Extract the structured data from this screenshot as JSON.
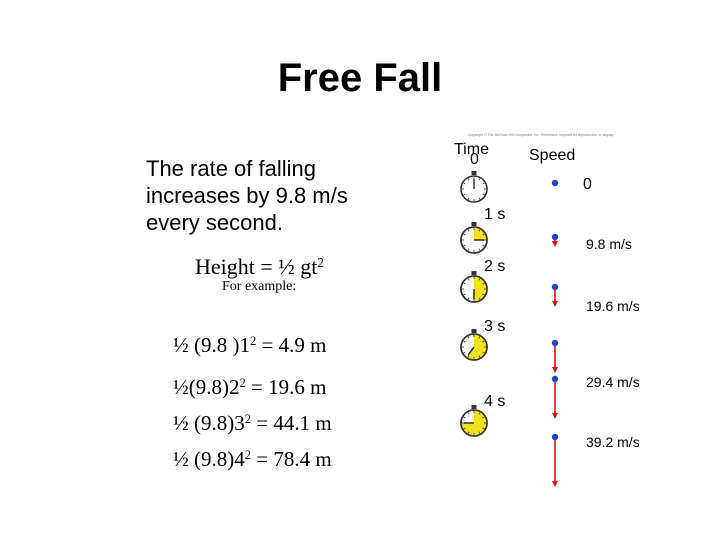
{
  "title": "Free Fall",
  "body": {
    "text": "The rate of falling increases by 9.8 m/s every second.",
    "formula": {
      "prefix": "Height = ½ gt",
      "exponent": "2"
    },
    "example_label": "For example:",
    "examples": [
      {
        "base": "½ (9.8 )1",
        "exponent": "2",
        "result": " = 4.9 m"
      },
      {
        "base": "½(9.8)2",
        "exponent": "2",
        "result": " = 19.6 m"
      },
      {
        "base": "½ (9.8)3",
        "exponent": "2",
        "result": " = 44.1 m"
      },
      {
        "base": "½ (9.8)4",
        "exponent": "2",
        "result": " = 78.4 m"
      }
    ]
  },
  "figure": {
    "copyright": "Copyright © The McGraw-Hill Companies, Inc. Permission required for reproduction or display.",
    "time_header": "Time",
    "speed_header": "Speed",
    "ball_color": "#2040c0",
    "arrow_color": "#d01010",
    "clock_fill_color": "#f5e020",
    "rows": [
      {
        "time": "0",
        "speed": "0",
        "elapsed_fraction": 0,
        "arrow_length": 0
      },
      {
        "time": "1 s",
        "speed": "9.8 m/s",
        "elapsed_fraction": 0.25,
        "arrow_length": 1
      },
      {
        "time": "2 s",
        "speed": "19.6 m/s",
        "elapsed_fraction": 0.5,
        "arrow_length": 2
      },
      {
        "time": "3 s",
        "speed": "",
        "elapsed_fraction": 0.6,
        "arrow_length": 3
      },
      {
        "time": "4 s",
        "speed": "29.4 m/s",
        "elapsed_fraction": 0.75,
        "arrow_length": 4
      },
      {
        "time": "",
        "speed": "39.2 m/s",
        "elapsed_fraction": 0.85,
        "arrow_length": 5
      }
    ]
  }
}
